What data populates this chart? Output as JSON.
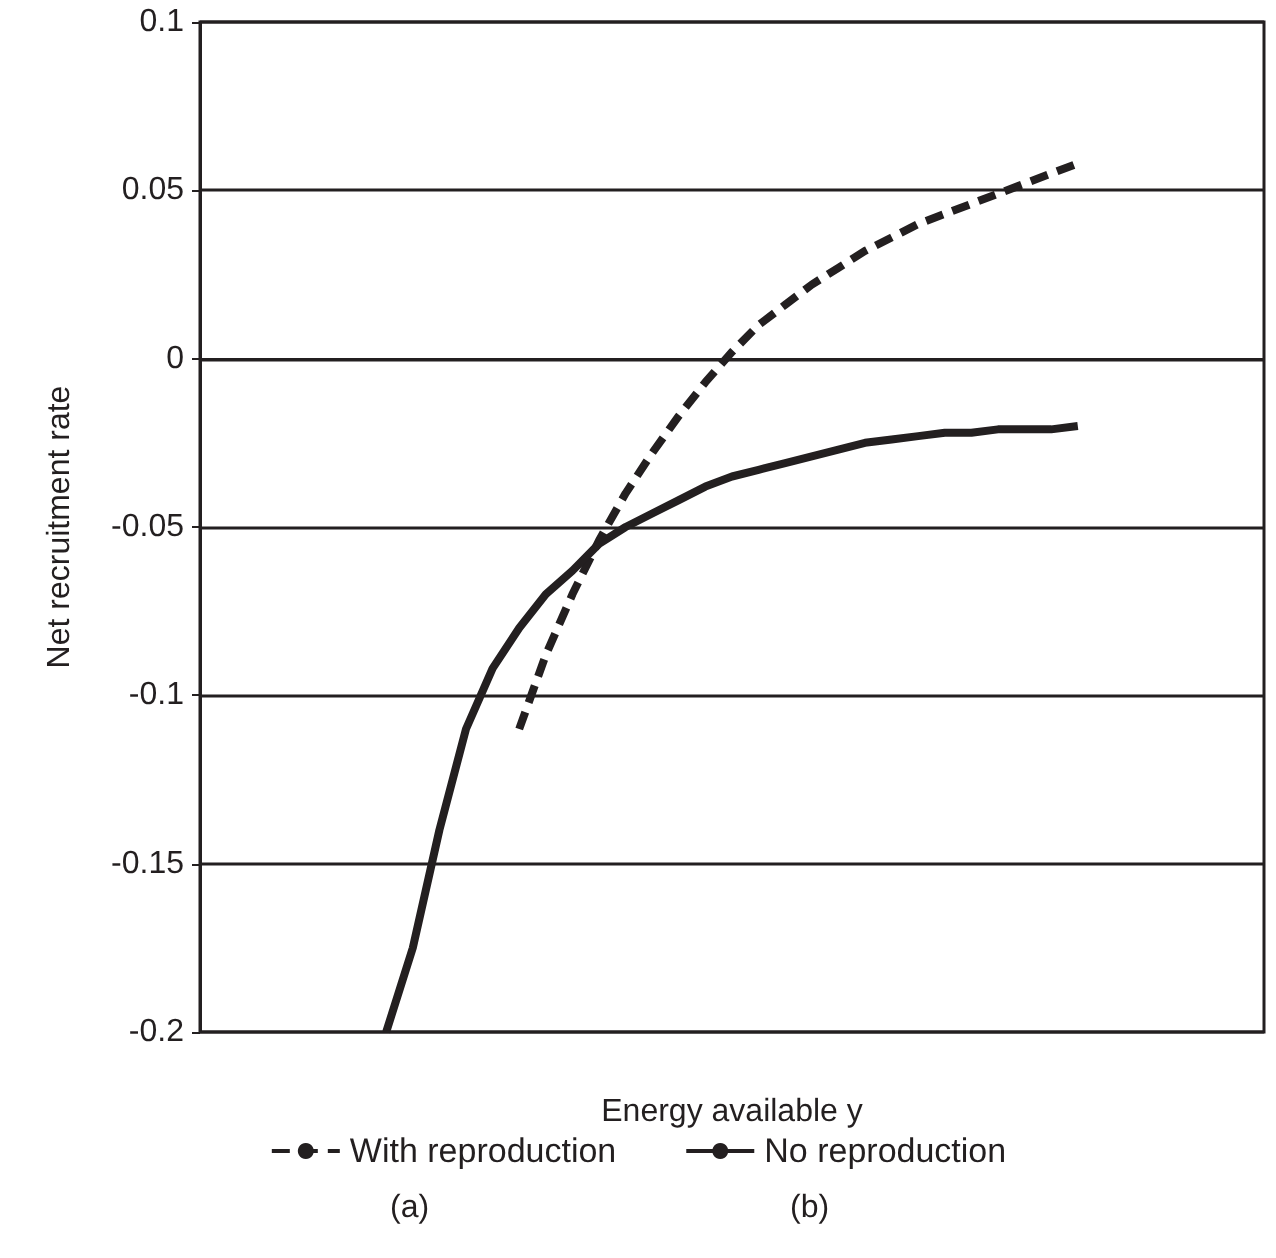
{
  "chart_data": {
    "type": "line",
    "xlabel": "Energy available y",
    "ylabel": "Net recruitment rate",
    "categories": [
      null,
      null,
      null,
      null,
      null,
      null,
      null,
      null,
      null,
      null,
      null,
      null,
      null,
      null,
      null,
      null,
      null,
      null,
      null,
      null,
      null,
      null,
      null,
      null,
      null,
      null,
      null,
      null,
      null,
      null,
      null,
      null,
      null,
      null,
      null,
      null,
      null,
      null,
      null,
      null,
      null
    ],
    "series": [
      {
        "name": "With reproduction",
        "color": "#231f20",
        "line_style": "dashed",
        "values": [
          null,
          null,
          null,
          null,
          null,
          null,
          null,
          null,
          null,
          null,
          null,
          null,
          -0.11,
          -0.088,
          -0.07,
          -0.054,
          -0.04,
          -0.028,
          -0.017,
          -0.007,
          0.002,
          0.01,
          0.016,
          0.022,
          0.027,
          0.032,
          0.036,
          0.04,
          0.043,
          0.046,
          0.049,
          0.052,
          0.055,
          0.058,
          null,
          null,
          null,
          null,
          null,
          null,
          null
        ]
      },
      {
        "name": "No reproduction",
        "color": "#231f20",
        "line_style": "solid",
        "values": [
          null,
          null,
          null,
          null,
          null,
          null,
          null,
          -0.2,
          -0.175,
          -0.14,
          -0.11,
          -0.092,
          -0.08,
          -0.07,
          -0.063,
          -0.055,
          -0.05,
          -0.046,
          -0.042,
          -0.038,
          -0.035,
          -0.033,
          -0.031,
          -0.029,
          -0.027,
          -0.025,
          -0.024,
          -0.023,
          -0.022,
          -0.022,
          -0.021,
          -0.021,
          -0.021,
          -0.02,
          null,
          null,
          null,
          null,
          null,
          null,
          null
        ]
      }
    ],
    "ylim": [
      -0.2,
      0.1
    ],
    "yticks": [
      -0.2,
      -0.15,
      -0.1,
      -0.05,
      0,
      0.05,
      0.1
    ],
    "grid": "y",
    "legend": "bottom",
    "marker": "none",
    "annotations": [
      "(a)",
      "(b)"
    ]
  }
}
